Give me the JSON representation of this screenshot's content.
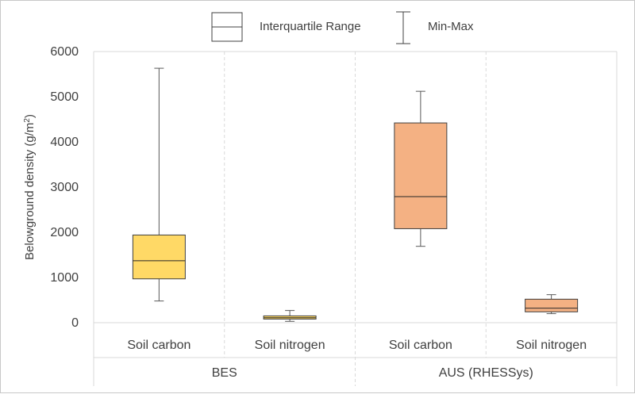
{
  "chart_data": {
    "type": "boxplot",
    "ylabel_main": "Belowground density (g/m",
    "ylabel_sup": "2",
    "ylabel_end": ")",
    "ylim": [
      0,
      6000
    ],
    "yticks": [
      "0",
      "1000",
      "2000",
      "3000",
      "4000",
      "5000",
      "6000"
    ],
    "ytick_values": [
      0,
      1000,
      2000,
      3000,
      4000,
      5000,
      6000
    ],
    "legend": {
      "placement": "top",
      "iqr_label": "Interquartile Range",
      "minmax_label": "Min-Max"
    },
    "groups": [
      {
        "label": "BES"
      },
      {
        "label": "AUS (RHESSys)"
      }
    ],
    "boxes": [
      {
        "label": "Soil carbon",
        "group": 0,
        "min": 480,
        "q1": 970,
        "median": 1370,
        "q3": 1940,
        "max": 5630,
        "fill": "#ffd966"
      },
      {
        "label": "Soil nitrogen",
        "group": 0,
        "min": 30,
        "q1": 80,
        "median": 110,
        "q3": 150,
        "max": 270,
        "fill": "#ffd966"
      },
      {
        "label": "Soil carbon",
        "group": 1,
        "min": 1690,
        "q1": 2080,
        "median": 2790,
        "q3": 4420,
        "max": 5120,
        "fill": "#f4b183"
      },
      {
        "label": "Soil nitrogen",
        "group": 1,
        "min": 200,
        "q1": 240,
        "median": 320,
        "q3": 520,
        "max": 620,
        "fill": "#f4b183"
      }
    ]
  }
}
